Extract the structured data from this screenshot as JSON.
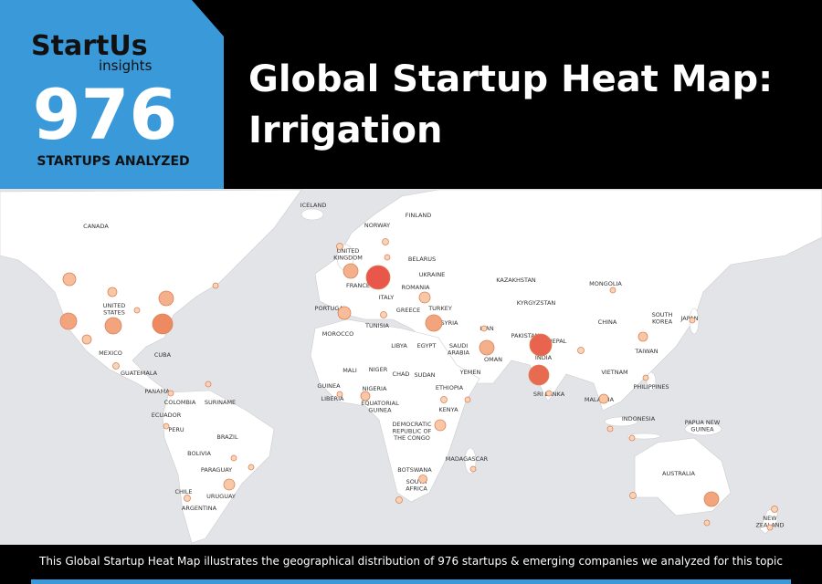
{
  "header": {
    "logo": "StartUs",
    "logo_sub": "insights",
    "count": 976,
    "count_label": "STARTUPS ANALYZED",
    "title_lines": [
      "Global Startup Heat Map:",
      "Irrigation"
    ]
  },
  "map_labels": [
    [
      "CANADA"
    ],
    [
      "ICELAND"
    ],
    [
      "NORWAY"
    ],
    [
      "FINLAND"
    ],
    [
      "UNITED",
      "KINGDOM"
    ],
    [
      "BELARUS"
    ],
    [
      "UKRAINE"
    ],
    [
      "FRANCE"
    ],
    [
      "ROMANIA"
    ],
    [
      "ITALY"
    ],
    [
      "KAZAKHSTAN"
    ],
    [
      "MONGOLIA"
    ],
    [
      "KYRGYZSTAN"
    ],
    [
      "UNITED",
      "STATES"
    ],
    [
      "PORTUGAL"
    ],
    [
      "GREECE"
    ],
    [
      "TURKEY"
    ],
    [
      "SOUTH",
      "KOREA"
    ],
    [
      "JAPAN"
    ],
    [
      "CHINA"
    ],
    [
      "TUNISIA"
    ],
    [
      "SYRIA"
    ],
    [
      "IRAN"
    ],
    [
      "MOROCCO"
    ],
    [
      "PAKISTAN"
    ],
    [
      "NEPAL"
    ],
    [
      "LIBYA"
    ],
    [
      "EGYPT"
    ],
    [
      "SAUDI",
      "ARABIA"
    ],
    [
      "TAIWAN"
    ],
    [
      "MEXICO"
    ],
    [
      "CUBA"
    ],
    [
      "INDIA"
    ],
    [
      "OMAN"
    ],
    [
      "GUATEMALA"
    ],
    [
      "MALI"
    ],
    [
      "NIGER"
    ],
    [
      "CHAD"
    ],
    [
      "SUDAN"
    ],
    [
      "YEMEN"
    ],
    [
      "VIETNAM"
    ],
    [
      "PHILIPPINES"
    ],
    [
      "PANAMA"
    ],
    [
      "GUINEA"
    ],
    [
      "NIGERIA"
    ],
    [
      "ETHIOPIA"
    ],
    [
      "SRI LANKA"
    ],
    [
      "MALAYSIA"
    ],
    [
      "COLOMBIA"
    ],
    [
      "SURINAME"
    ],
    [
      "LIBERIA"
    ],
    [
      "EQUATORIAL",
      "GUINEA"
    ],
    [
      "KENYA"
    ],
    [
      "ECUADOR"
    ],
    [
      "INDONESIA"
    ],
    [
      "PAPUA NEW",
      "GUINEA"
    ],
    [
      "PERU"
    ],
    [
      "DEMOCRATIC",
      "REPUBLIC OF",
      "THE CONGO"
    ],
    [
      "BRAZIL"
    ],
    [
      "BOLIVIA"
    ],
    [
      "MADAGASCAR"
    ],
    [
      "AUSTRALIA"
    ],
    [
      "PARAGUAY"
    ],
    [
      "BOTSWANA"
    ],
    [
      "SOUTH",
      "AFRICA"
    ],
    [
      "URUGUAY"
    ],
    [
      "CHILE"
    ],
    [
      "ARGENTINA"
    ],
    [
      "NEW",
      "ZEALAND"
    ]
  ],
  "footer": "This Global Startup Heat Map illustrates the geographical distribution of 976 startups & emerging companies we analyzed for this topic"
}
